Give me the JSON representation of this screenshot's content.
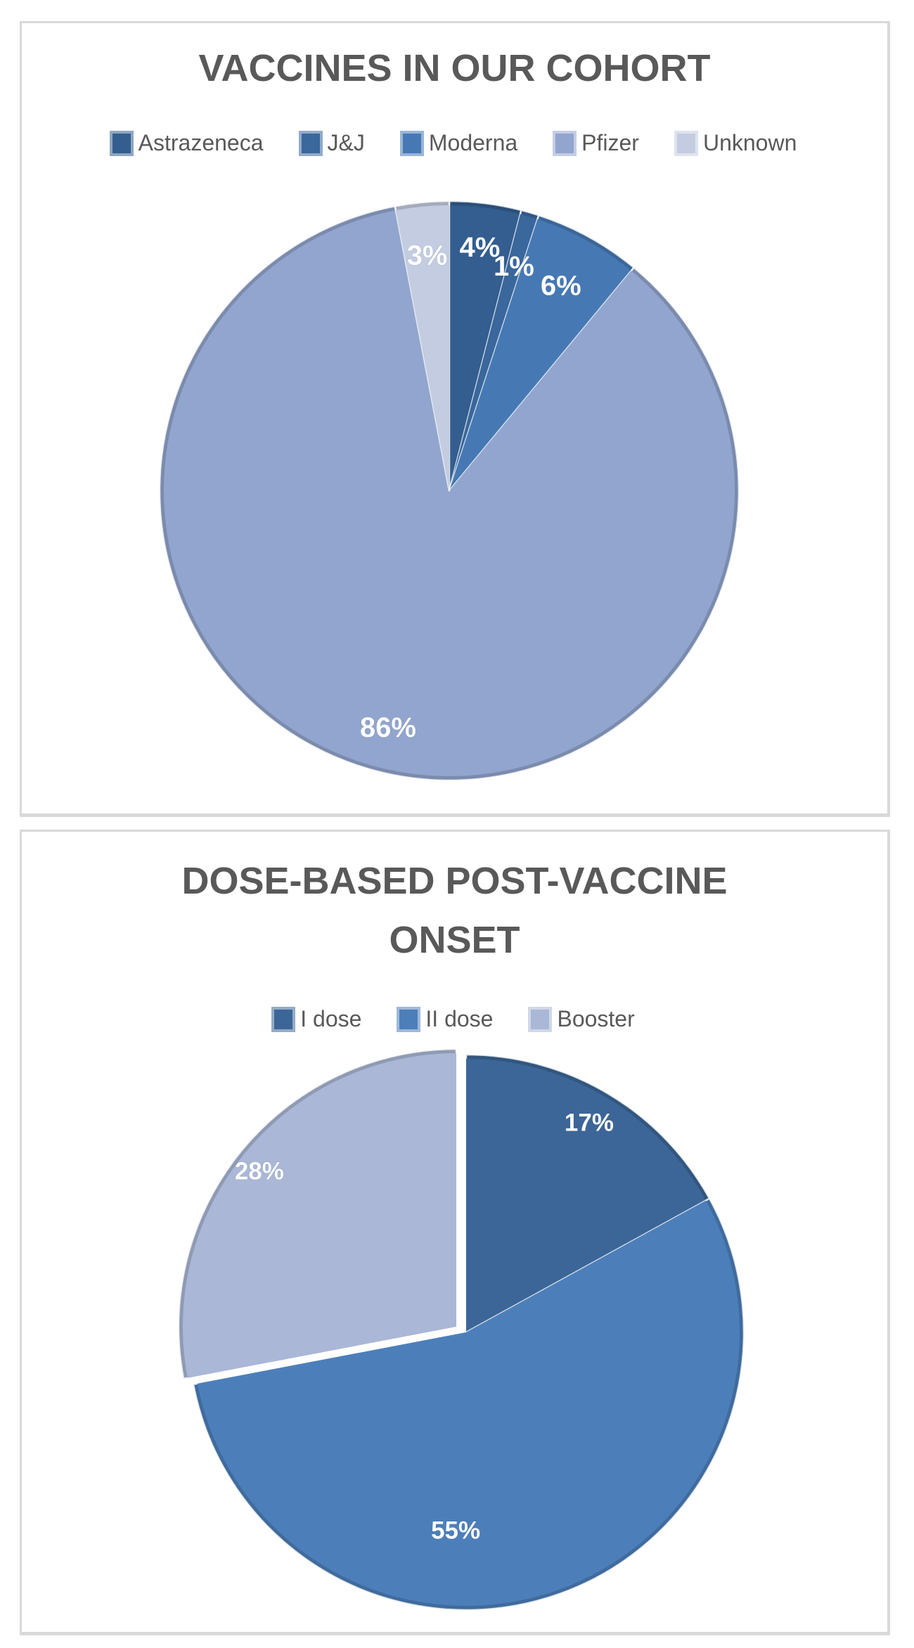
{
  "chart_data": [
    {
      "type": "pie",
      "title": "VACCINES IN OUR COHORT",
      "legend_position": "top",
      "title_color": "#595959",
      "slices": [
        {
          "name": "Astrazeneca",
          "value": 4,
          "pct_label": "4%",
          "color": "#335E8F",
          "label_angle": 7.2,
          "label_r": 0.84
        },
        {
          "name": "J&J",
          "value": 1,
          "pct_label": "1%",
          "color": "#3A679C",
          "label_angle": 16.2,
          "label_r": 0.8
        },
        {
          "name": "Moderna",
          "value": 6,
          "pct_label": "6%",
          "color": "#4679B4",
          "label_angle": 28.8,
          "label_r": 0.8
        },
        {
          "name": "Pfizer",
          "value": 86,
          "pct_label": "86%",
          "color": "#92A5CE",
          "label_angle": 194.4,
          "label_r": 0.85
        },
        {
          "name": "Unknown",
          "value": 3,
          "pct_label": "3%",
          "color": "#C3CCE0",
          "label_angle": 354.6,
          "label_r": 0.81
        }
      ]
    },
    {
      "type": "pie",
      "title": "DOSE-BASED POST-VACCINE ONSET",
      "legend_position": "top",
      "title_color": "#595959",
      "slices": [
        {
          "name": "I dose",
          "value": 17,
          "pct_label": "17%",
          "color": "#3C6697",
          "label_angle": 30.6,
          "label_r": 0.87
        },
        {
          "name": "II dose",
          "value": 55,
          "pct_label": "55%",
          "color": "#4C7FBA",
          "label_angle": 183,
          "label_r": 0.72
        },
        {
          "name": "Booster",
          "value": 28,
          "pct_label": "28%",
          "color": "#AAB7D6",
          "label_angle": 308,
          "label_r": 0.9,
          "explode": [
            -14,
            -8
          ]
        }
      ]
    }
  ]
}
